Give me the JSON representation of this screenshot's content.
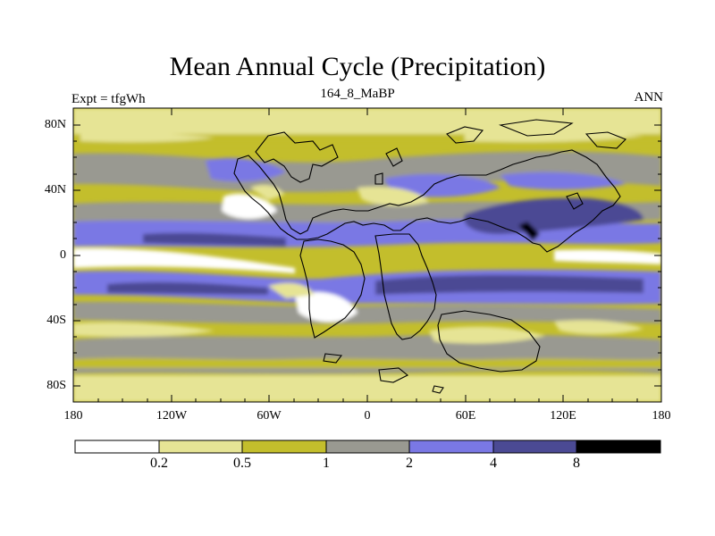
{
  "map": {
    "title": "Mean Annual Cycle (Precipitation)",
    "experiment": "Expt = tfgWh",
    "run": "164_8_MaBP",
    "season": "ANN",
    "lat_labels": [
      "80N",
      "40N",
      "0",
      "40S",
      "80S"
    ],
    "lon_labels": [
      "180",
      "120W",
      "60W",
      "0",
      "60E",
      "120E",
      "180"
    ],
    "colorbar": {
      "levels": [
        "0.2",
        "0.5",
        "1",
        "2",
        "4",
        "8"
      ],
      "colors": [
        "#ffffff",
        "#e6e495",
        "#c3be2c",
        "#999991",
        "#7a78e4",
        "#4b4a94",
        "#000000"
      ]
    }
  }
}
